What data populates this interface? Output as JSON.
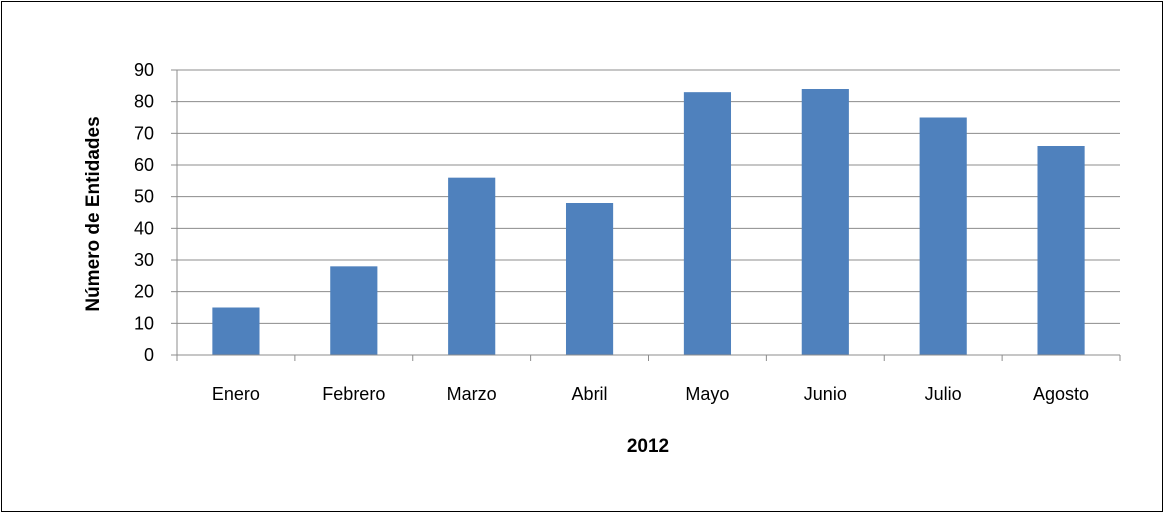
{
  "chart_data": {
    "type": "bar",
    "title": "",
    "xlabel": "2012",
    "ylabel": "Número de Entidades",
    "categories": [
      "Enero",
      "Febrero",
      "Marzo",
      "Abril",
      "Mayo",
      "Junio",
      "Julio",
      "Agosto"
    ],
    "values": [
      15,
      28,
      56,
      48,
      83,
      84,
      75,
      66
    ],
    "ylim": [
      0,
      90
    ],
    "yticks": [
      0,
      10,
      20,
      30,
      40,
      50,
      60,
      70,
      80,
      90
    ],
    "grid": true,
    "legend": "none",
    "colors": {
      "bar": "#4f81bd",
      "grid": "#8c8c8c",
      "axis": "#8c8c8c"
    }
  }
}
